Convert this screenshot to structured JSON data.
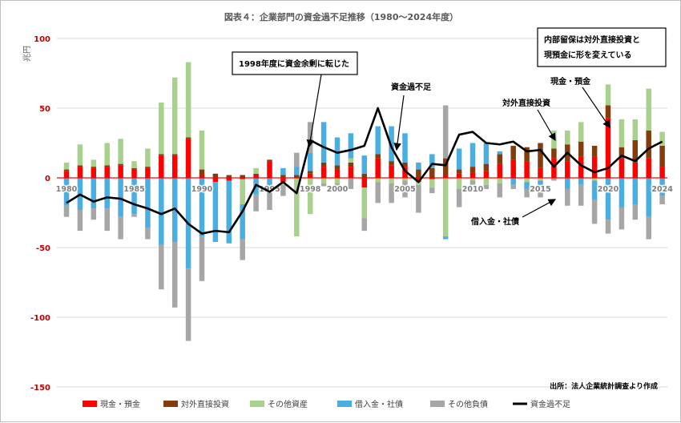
{
  "chart_data": {
    "type": "bar",
    "title": "図表４：企業部門の資金過不足推移（1980〜2024年度）",
    "ylabel": "兆円",
    "ylim": [
      -150,
      100
    ],
    "yticks": [
      100,
      50,
      0,
      -50,
      -100,
      -150
    ],
    "x": [
      1980,
      1981,
      1982,
      1983,
      1984,
      1985,
      1986,
      1987,
      1988,
      1989,
      1990,
      1991,
      1992,
      1993,
      1994,
      1995,
      1996,
      1997,
      1998,
      1999,
      2000,
      2001,
      2002,
      2003,
      2004,
      2005,
      2006,
      2007,
      2008,
      2009,
      2010,
      2011,
      2012,
      2013,
      2014,
      2015,
      2016,
      2017,
      2018,
      2019,
      2020,
      2021,
      2022,
      2023,
      2024
    ],
    "xtick_labels": [
      "1980",
      "1985",
      "1990",
      "1995",
      "1998",
      "2000",
      "2005",
      "2010",
      "2015",
      "2020",
      "2024"
    ],
    "xtick_years": [
      1980,
      1985,
      1990,
      1995,
      1998,
      2000,
      2005,
      2010,
      2015,
      2020,
      2024
    ],
    "grid": true,
    "legend_position": "bottom",
    "series": [
      {
        "name": "現金・預金",
        "color": "#ff0000",
        "kind": "bar",
        "values": [
          5,
          8,
          7,
          8,
          9,
          6,
          7,
          16,
          16,
          28,
          2,
          -3,
          -2,
          -1,
          2,
          12,
          -3,
          0,
          3,
          8,
          6,
          8,
          -7,
          14,
          9,
          8,
          -3,
          -1,
          2,
          3,
          4,
          5,
          10,
          13,
          12,
          7,
          14,
          12,
          15,
          15,
          43,
          14,
          11,
          14,
          8
        ]
      },
      {
        "name": "対外直接投資",
        "color": "#843c0c",
        "kind": "bar",
        "values": [
          1,
          1,
          1,
          1,
          1,
          1,
          1,
          1,
          1,
          1,
          4,
          3,
          2,
          2,
          1,
          1,
          2,
          2,
          2,
          3,
          3,
          3,
          3,
          3,
          3,
          3,
          6,
          7,
          12,
          3,
          4,
          5,
          7,
          10,
          10,
          18,
          7,
          12,
          11,
          8,
          9,
          8,
          16,
          20,
          15
        ]
      },
      {
        "name": "その他資産",
        "color": "#a9d18e",
        "kind": "bar",
        "values": [
          5,
          15,
          5,
          16,
          18,
          5,
          13,
          37,
          55,
          54,
          28,
          0,
          0,
          -18,
          4,
          0,
          -2,
          -42,
          -26,
          -4,
          -4,
          3,
          -22,
          -3,
          -4,
          -2,
          -2,
          -6,
          -42,
          -8,
          -2,
          -5,
          -4,
          0,
          -3,
          -2,
          13,
          10,
          14,
          -2,
          15,
          20,
          15,
          30,
          10
        ]
      },
      {
        "name": "借入金・社債",
        "color": "#4aaee0",
        "kind": "bar",
        "values": [
          -20,
          -23,
          -22,
          -22,
          -28,
          -26,
          -36,
          -48,
          -46,
          -65,
          -42,
          -43,
          -45,
          -25,
          -12,
          -8,
          5,
          6,
          13,
          29,
          20,
          18,
          13,
          20,
          25,
          21,
          5,
          10,
          -2,
          15,
          17,
          15,
          2,
          -5,
          -5,
          -3,
          0,
          -8,
          -5,
          -14,
          -30,
          -21,
          -19,
          -28,
          -13
        ]
      },
      {
        "name": "その他負債",
        "color": "#a6a6a6",
        "kind": "bar",
        "values": [
          -8,
          -15,
          -8,
          -16,
          -16,
          -2,
          -8,
          -32,
          -47,
          -52,
          -32,
          0,
          0,
          -15,
          -12,
          -15,
          -8,
          10,
          22,
          -2,
          -6,
          -8,
          -9,
          -15,
          -14,
          -12,
          -20,
          -4,
          38,
          -13,
          -3,
          -3,
          -10,
          -3,
          -6,
          -9,
          -2,
          -12,
          -15,
          -17,
          -10,
          -16,
          -11,
          -16,
          -6
        ]
      },
      {
        "name": "資金過不足",
        "color": "#000000",
        "kind": "line",
        "values": [
          -18,
          -12,
          -17,
          -14,
          -15,
          -19,
          -22,
          -26,
          -22,
          -33,
          -40,
          -38,
          -39,
          -24,
          -5,
          -10,
          -3,
          -11,
          27,
          22,
          18,
          20,
          23,
          50,
          22,
          5,
          -3,
          10,
          9,
          31,
          33,
          25,
          24,
          26,
          19,
          20,
          8,
          18,
          9,
          4,
          7,
          16,
          12,
          21,
          26
        ]
      }
    ],
    "annotations": [
      {
        "text": "1998年度に資金余剰に転じた",
        "boxed": true
      },
      {
        "text": "資金過不足",
        "boxed": false
      },
      {
        "text": "内部留保は対外直接投資と",
        "boxed": true
      },
      {
        "text": "現預金に形を変えている",
        "boxed": true
      },
      {
        "text": "現金・預金",
        "boxed": false
      },
      {
        "text": "対外直接投資",
        "boxed": false
      },
      {
        "text": "借入金・社債",
        "boxed": false
      }
    ],
    "source": "出所：法人企業統計調査より作成"
  }
}
